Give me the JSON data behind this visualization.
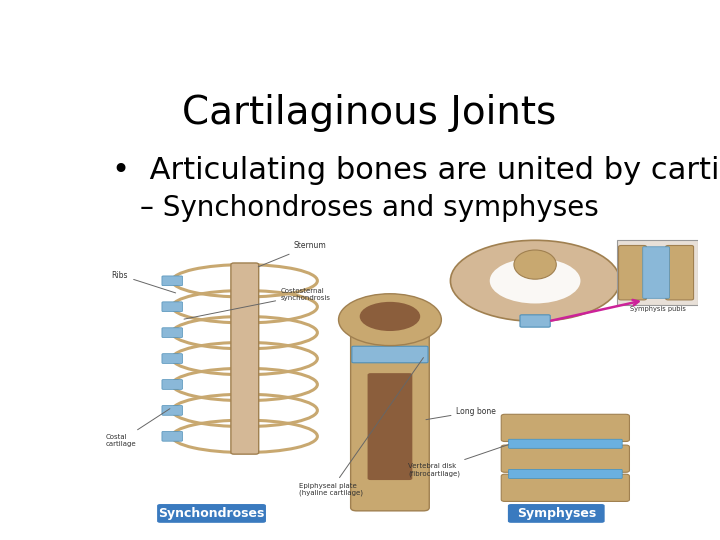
{
  "title": "Cartilaginous Joints",
  "bullet1": "•  Articulating bones are united by cartilage",
  "sub_bullet1": "– Synchondroses and symphyses",
  "bg_color": "#ffffff",
  "title_color": "#000000",
  "bullet_color": "#000000",
  "box_border_color": "#cccccc",
  "title_fontsize": 28,
  "bullet_fontsize": 22,
  "sub_bullet_fontsize": 20,
  "label1_text": "Synchondroses",
  "label2_text": "Symphyses",
  "label_bg": "#3a7abf",
  "label_text_color": "#ffffff",
  "label_fontsize": 9,
  "bone_color": "#c8a870",
  "bone_edge": "#a08050",
  "cartilage_color": "#8ab8d8",
  "cartilage_edge": "#5090b8",
  "marrow_color": "#8b5e3c",
  "bg_panel": "#faf8f5",
  "annotation_color": "#333333",
  "arrow_color": "#666666"
}
